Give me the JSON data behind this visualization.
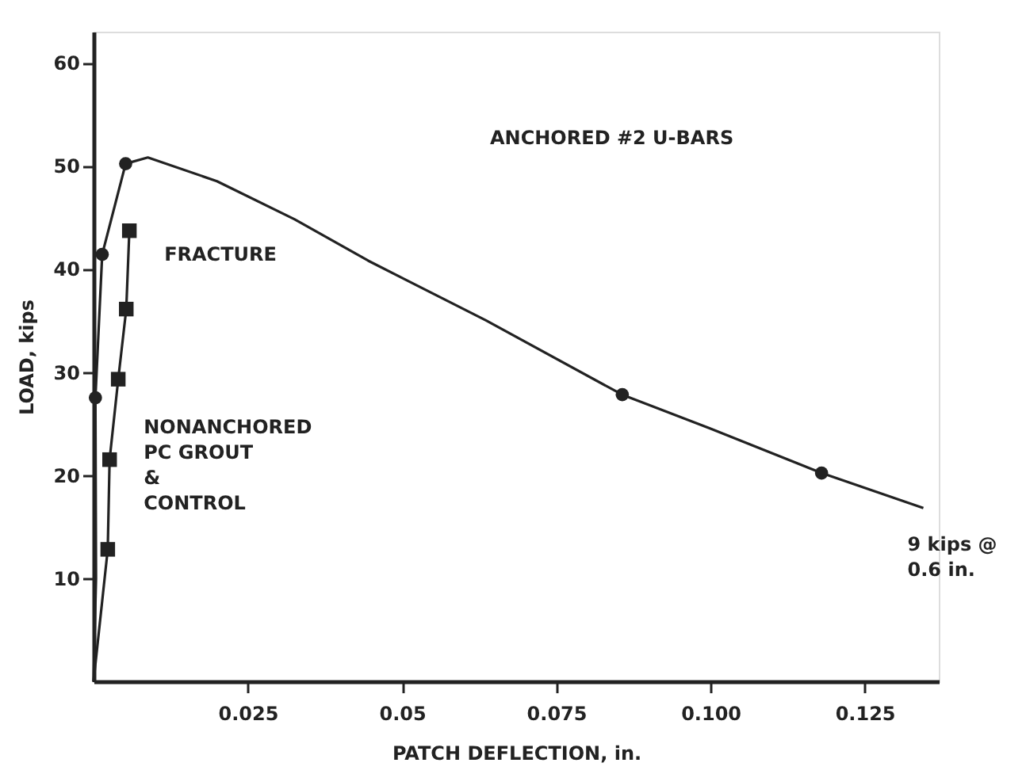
{
  "chart_data": {
    "type": "line",
    "xlabel": "PATCH DEFLECTION, in.",
    "ylabel": "LOAD, kips",
    "xlim": [
      0,
      0.137
    ],
    "ylim": [
      0,
      63
    ],
    "xticks": [
      0.025,
      0.05,
      0.075,
      {
        "value": 0.1,
        "label": "0.100"
      },
      0.125
    ],
    "yticks": [
      10,
      20,
      30,
      40,
      50,
      60
    ],
    "grid": false,
    "series": [
      {
        "color": "#222222",
        "marker": "none",
        "line_style": "solid",
        "x": [
          0,
          0.0004,
          0.0003,
          0.0014,
          0.0052,
          0.0088,
          0.02,
          0.0326,
          0.0445,
          0.0636,
          0.0857,
          0.1,
          0.118,
          0.1345
        ],
        "values": [
          0,
          10,
          27.5,
          41.4,
          50.2,
          50.8,
          48.5,
          44.8,
          40.8,
          35,
          27.8,
          24.5,
          20.2,
          16.8
        ]
      },
      {
        "type": "scatter",
        "color": "#222222",
        "marker": "circle",
        "x": [
          0.0003,
          0.0014,
          0.0052,
          0.0857,
          0.118
        ],
        "values": [
          27.5,
          41.4,
          50.2,
          27.8,
          20.2
        ]
      },
      {
        "color": "#222222",
        "marker": "none",
        "line_style": "solid",
        "x": [
          0,
          0.0023,
          0.0026,
          0.004,
          0.0053,
          0.0058
        ],
        "values": [
          0,
          12.8,
          21.5,
          29.3,
          36.1,
          43.7
        ]
      },
      {
        "type": "scatter",
        "color": "#222222",
        "marker": "square",
        "x": [
          0.0023,
          0.0026,
          0.004,
          0.0053,
          0.0058
        ],
        "values": [
          12.8,
          21.5,
          29.3,
          36.1,
          43.7
        ]
      }
    ],
    "annotations": [
      "ANCHORED #2 U-BARS",
      {
        "text": "FRACTURE",
        "x": 0.0058,
        "y": 43.7
      },
      {
        "text": "NONANCHORED\nPC GROUT\n&\nCONTROL",
        "x": 0.0035,
        "y": 27
      },
      {
        "text": "9 kips @\n0.6 in.",
        "x": 0.1345,
        "y": 16.8
      }
    ]
  }
}
